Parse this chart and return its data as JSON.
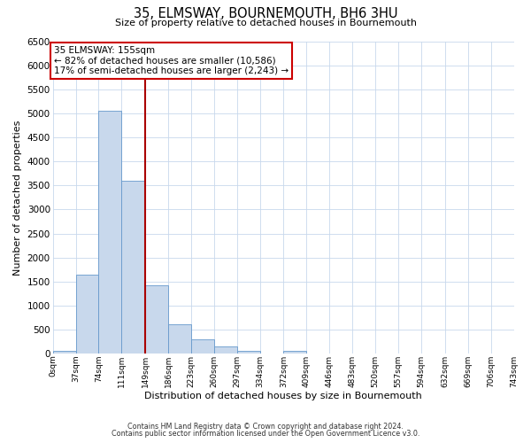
{
  "title": "35, ELMSWAY, BOURNEMOUTH, BH6 3HU",
  "subtitle": "Size of property relative to detached houses in Bournemouth",
  "xlabel": "Distribution of detached houses by size in Bournemouth",
  "ylabel": "Number of detached properties",
  "bin_edges": [
    0,
    37,
    74,
    111,
    149,
    186,
    223,
    260,
    297,
    334,
    372,
    409,
    446,
    483,
    520,
    557,
    594,
    632,
    669,
    706,
    743
  ],
  "bin_labels": [
    "0sqm",
    "37sqm",
    "74sqm",
    "111sqm",
    "149sqm",
    "186sqm",
    "223sqm",
    "260sqm",
    "297sqm",
    "334sqm",
    "372sqm",
    "409sqm",
    "446sqm",
    "483sqm",
    "520sqm",
    "557sqm",
    "594sqm",
    "632sqm",
    "669sqm",
    "706sqm",
    "743sqm"
  ],
  "bar_heights": [
    50,
    1650,
    5050,
    3600,
    1420,
    610,
    290,
    145,
    50,
    0,
    50,
    0,
    0,
    0,
    0,
    0,
    0,
    0,
    0,
    0
  ],
  "bar_color": "#c8d8ec",
  "bar_edgecolor": "#6699cc",
  "property_line_x": 149,
  "property_line_color": "#aa0000",
  "ylim": [
    0,
    6500
  ],
  "yticks": [
    0,
    500,
    1000,
    1500,
    2000,
    2500,
    3000,
    3500,
    4000,
    4500,
    5000,
    5500,
    6000,
    6500
  ],
  "annotation_title": "35 ELMSWAY: 155sqm",
  "annotation_line1": "← 82% of detached houses are smaller (10,586)",
  "annotation_line2": "17% of semi-detached houses are larger (2,243) →",
  "annotation_box_color": "#cc0000",
  "footer1": "Contains HM Land Registry data © Crown copyright and database right 2024.",
  "footer2": "Contains public sector information licensed under the Open Government Licence v3.0.",
  "background_color": "#ffffff",
  "grid_color": "#c8d8ec"
}
